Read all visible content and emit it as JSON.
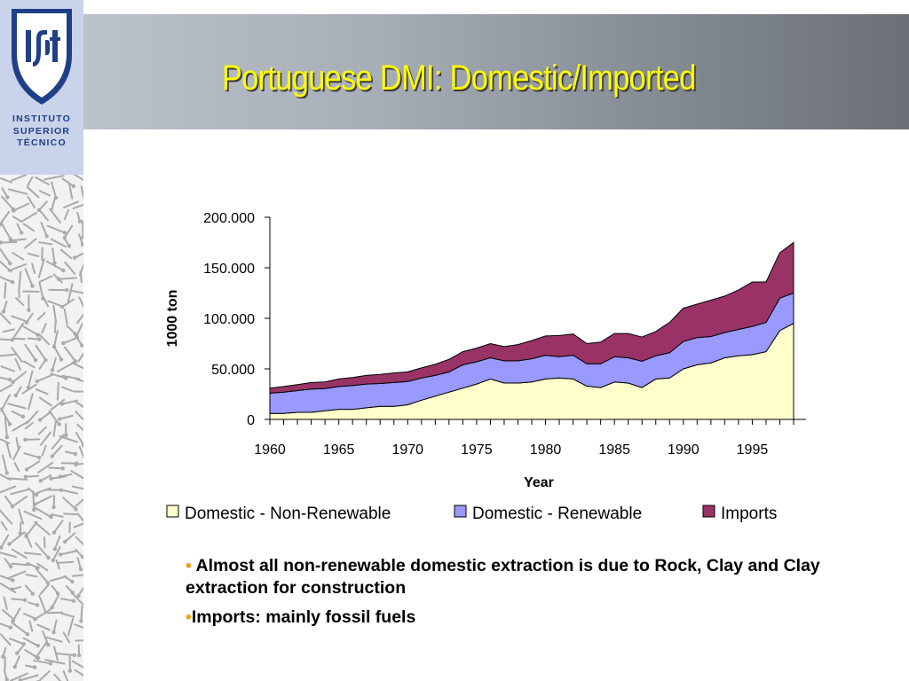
{
  "slide": {
    "title": "Portuguese DMI: Domestic/Imported",
    "institution": "INSTITUTO\nSUPERIOR\nTÉCNICO",
    "logo_text": "IST",
    "bullets": [
      {
        "marker": "•",
        "text": " Almost all non-renewable domestic extraction is due to Rock, Clay and Clay extraction for construction"
      },
      {
        "marker": "•",
        "text": "Imports: mainly fossil fuels"
      }
    ]
  },
  "colors": {
    "title": "#ffff00",
    "logo_blue": "#1f3f86",
    "bullet_marker": "#e8a317"
  },
  "chart_data": {
    "type": "area",
    "stacked": true,
    "x": [
      1960,
      1961,
      1962,
      1963,
      1964,
      1965,
      1966,
      1967,
      1968,
      1969,
      1970,
      1971,
      1972,
      1973,
      1974,
      1975,
      1976,
      1977,
      1978,
      1979,
      1980,
      1981,
      1982,
      1983,
      1984,
      1985,
      1986,
      1987,
      1988,
      1989,
      1990,
      1991,
      1992,
      1993,
      1994,
      1995,
      1996,
      1997,
      1998
    ],
    "xlabel": "Year",
    "ylabel": "1000 ton",
    "ylim": [
      0,
      200000
    ],
    "y_ticks": [
      {
        "value": 0,
        "label": "0"
      },
      {
        "value": 50000,
        "label": "50.000"
      },
      {
        "value": 100000,
        "label": "100.000"
      },
      {
        "value": 150000,
        "label": "150.000"
      },
      {
        "value": 200000,
        "label": "200.000"
      }
    ],
    "x_ticks": [
      {
        "value": 1960,
        "label": "1960"
      },
      {
        "value": 1965,
        "label": "1965"
      },
      {
        "value": 1970,
        "label": "1970"
      },
      {
        "value": 1975,
        "label": "1975"
      },
      {
        "value": 1980,
        "label": "1980"
      },
      {
        "value": 1985,
        "label": "1985"
      },
      {
        "value": 1990,
        "label": "1990"
      },
      {
        "value": 1995,
        "label": "1995"
      }
    ],
    "grid": false,
    "legend_position": "bottom",
    "series": [
      {
        "name": "Domestic - Non-Renewable",
        "color": "#ffffcc",
        "values": [
          6000,
          6000,
          7000,
          7000,
          8500,
          10000,
          10000,
          11500,
          13000,
          13000,
          14500,
          19000,
          23000,
          27000,
          31000,
          35000,
          40000,
          36000,
          36000,
          37000,
          40000,
          41000,
          40000,
          33000,
          31500,
          37000,
          36000,
          31500,
          40000,
          41000,
          50000,
          54000,
          56000,
          61000,
          63000,
          64000,
          67000,
          88000,
          95000
        ]
      },
      {
        "name": "Domestic - Renewable",
        "color": "#9999ff",
        "values": [
          20000,
          21000,
          21500,
          23000,
          22000,
          22500,
          23500,
          23500,
          22500,
          23500,
          23000,
          22000,
          20500,
          20000,
          23000,
          22000,
          21000,
          22000,
          22000,
          23000,
          23500,
          21000,
          23500,
          22000,
          23500,
          25000,
          25000,
          26000,
          23000,
          25000,
          27000,
          27000,
          26000,
          25000,
          26000,
          28000,
          29000,
          32000,
          30000
        ]
      },
      {
        "name": "Imports",
        "color": "#993366",
        "values": [
          5000,
          5500,
          6000,
          6500,
          6500,
          7500,
          8000,
          8500,
          9000,
          9500,
          9500,
          10000,
          11000,
          12500,
          13000,
          13500,
          14000,
          14000,
          16000,
          18000,
          19000,
          21000,
          21000,
          20000,
          21500,
          23000,
          24000,
          24000,
          24000,
          30000,
          33000,
          33000,
          36000,
          36000,
          39000,
          44000,
          40000,
          45000,
          50000
        ]
      }
    ]
  }
}
